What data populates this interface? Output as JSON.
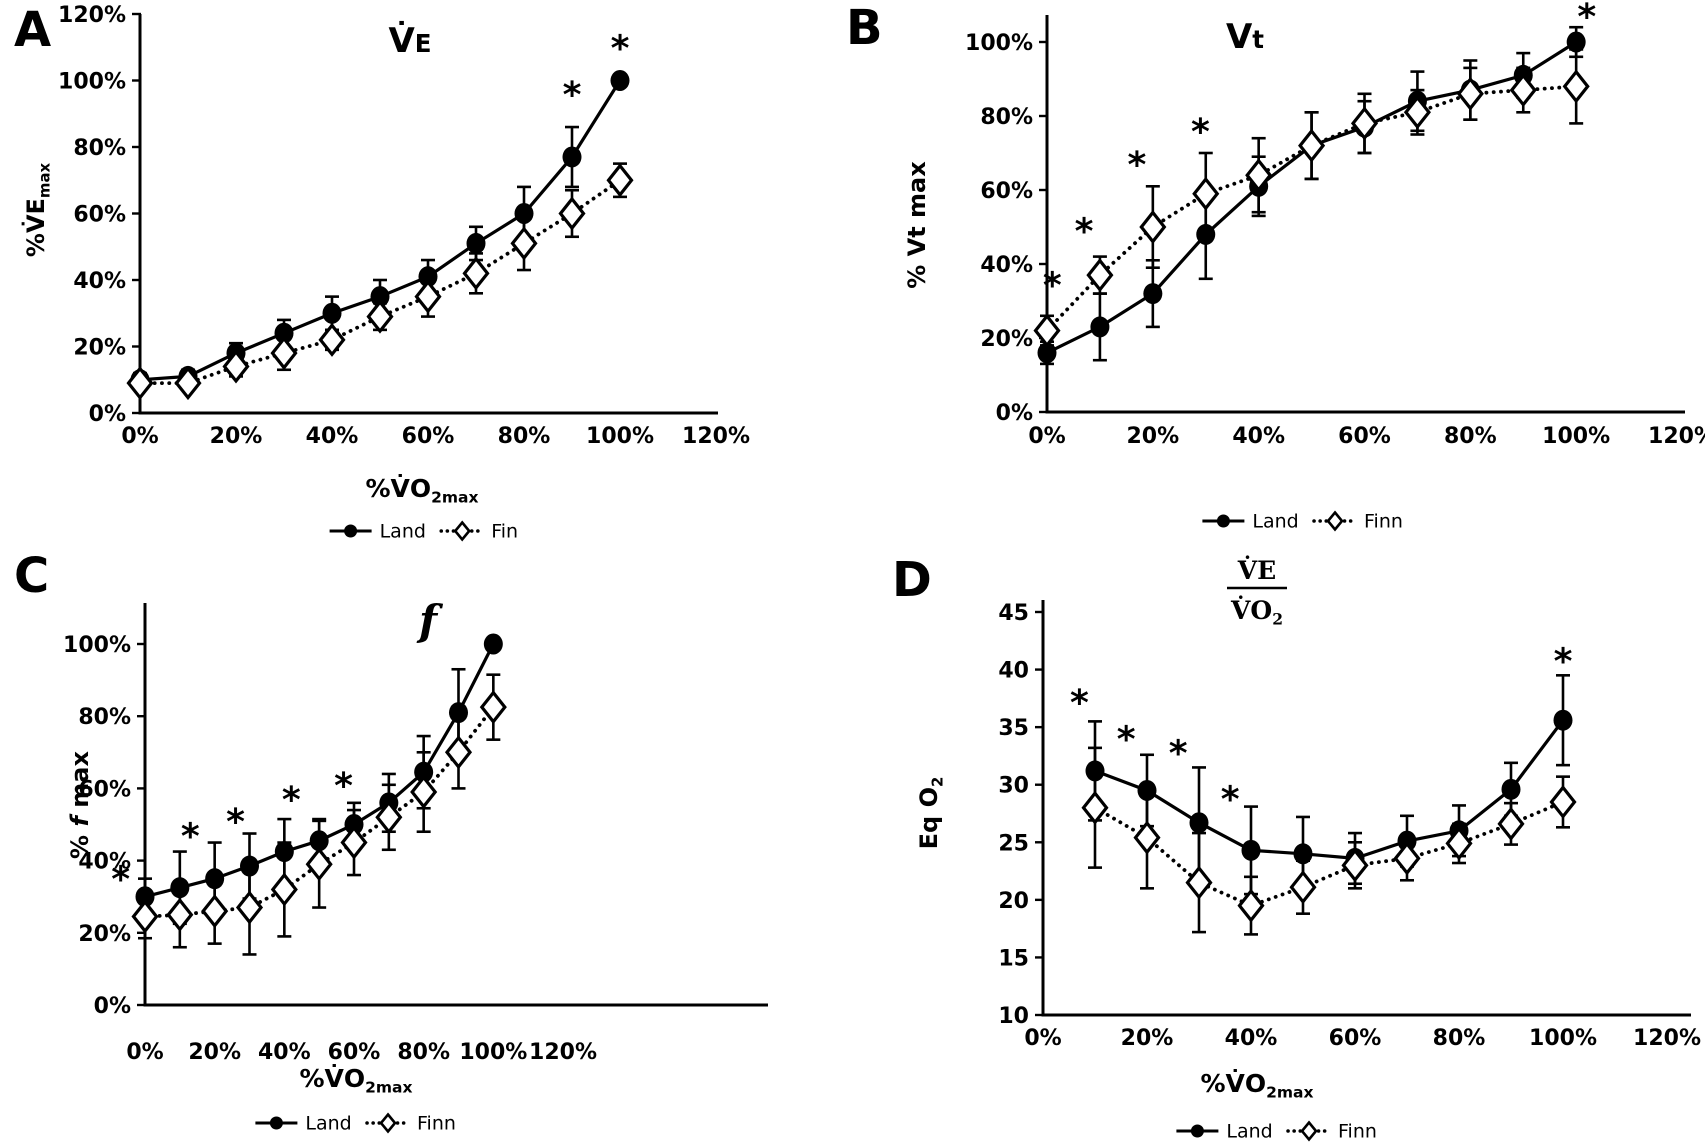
{
  "colors": {
    "ink": "#000000",
    "background": "#ffffff"
  },
  "significance_marker": "*",
  "chart_data": [
    {
      "panel": "A",
      "type": "line",
      "title": "V̇~{E}",
      "xlabel": "%V̇O_{2max}",
      "ylabel": "%V̇E_{max}",
      "xlim": [
        0,
        120
      ],
      "ylim": [
        0,
        120
      ],
      "x_ticks": {
        "values": [
          0,
          20,
          40,
          60,
          80,
          100,
          120
        ],
        "labels": [
          "0%",
          "20%",
          "40%",
          "60%",
          "80%",
          "100%",
          "120%"
        ]
      },
      "y_ticks": {
        "values": [
          0,
          20,
          40,
          60,
          80,
          100,
          120
        ],
        "labels": [
          "0%",
          "20%",
          "40%",
          "60%",
          "80%",
          "100%",
          "120%"
        ]
      },
      "x": [
        0,
        10,
        20,
        30,
        40,
        50,
        60,
        70,
        80,
        90,
        100
      ],
      "series": [
        {
          "name": "Land",
          "style": "solid-circle",
          "values": [
            10,
            11,
            18,
            24,
            30,
            35,
            41,
            51,
            60,
            77,
            100
          ],
          "err": [
            2,
            2,
            3,
            4,
            5,
            5,
            5,
            5,
            8,
            9,
            0
          ]
        },
        {
          "name": "Fin",
          "style": "dotted-diamond",
          "values": [
            9,
            9,
            14,
            18,
            22,
            29,
            35,
            42,
            51,
            60,
            70
          ],
          "err": [
            2,
            2,
            3,
            5,
            3,
            4,
            6,
            6,
            8,
            7,
            5
          ]
        }
      ],
      "asterisks": [
        {
          "x": 90,
          "y": 96
        },
        {
          "x": 100,
          "y": 110
        }
      ],
      "legend": [
        "Land",
        "Fin"
      ]
    },
    {
      "panel": "B",
      "type": "line",
      "title": "V~{t}",
      "xlabel": null,
      "ylabel": "% Vt max",
      "xlim": [
        0,
        120
      ],
      "ylim": [
        0,
        100
      ],
      "x_ticks": {
        "values": [
          0,
          20,
          40,
          60,
          80,
          100,
          120
        ],
        "labels": [
          "0%",
          "20%",
          "40%",
          "60%",
          "80%",
          "100%",
          "120%"
        ]
      },
      "y_ticks": {
        "values": [
          0,
          20,
          40,
          60,
          80,
          100
        ],
        "labels": [
          "0%",
          "20%",
          "40%",
          "60%",
          "80%",
          "100%"
        ]
      },
      "x": [
        0,
        10,
        20,
        30,
        40,
        50,
        60,
        70,
        80,
        90,
        100
      ],
      "series": [
        {
          "name": "Land",
          "style": "solid-circle",
          "values": [
            16,
            23,
            32,
            48,
            61,
            72,
            77,
            84,
            87,
            91,
            100
          ],
          "err": [
            3,
            9,
            9,
            12,
            8,
            9,
            7,
            8,
            8,
            6,
            4
          ]
        },
        {
          "name": "Finn",
          "style": "dotted-diamond",
          "values": [
            22,
            37,
            50,
            59,
            64,
            72,
            78,
            81,
            86,
            87,
            88
          ],
          "err": [
            4,
            5,
            11,
            11,
            10,
            9,
            8,
            6,
            7,
            6,
            10
          ]
        }
      ],
      "asterisks": [
        {
          "x": 1,
          "y": 34.5
        },
        {
          "x": 7,
          "y": 49
        },
        {
          "x": 17,
          "y": 67
        },
        {
          "x": 29,
          "y": 76
        },
        {
          "x": 102,
          "y": 107
        }
      ],
      "legend": [
        "Land",
        "Finn"
      ]
    },
    {
      "panel": "C",
      "type": "line",
      "title": "*f*",
      "xlabel": "%V̇O_{2max}",
      "ylabel": "% *f* max",
      "xlim": [
        0,
        120
      ],
      "ylim": [
        0,
        100
      ],
      "x_ticks": {
        "values": [
          0,
          20,
          40,
          60,
          80,
          100,
          120
        ],
        "labels": [
          "0%",
          "20%",
          "40%",
          "60%",
          "80%",
          "100%",
          "120%"
        ]
      },
      "y_ticks": {
        "values": [
          0,
          20,
          40,
          60,
          80,
          100
        ],
        "labels": [
          "0%",
          "20%",
          "40%",
          "60%",
          "80%",
          "100%"
        ]
      },
      "x": [
        0,
        10,
        20,
        30,
        40,
        50,
        60,
        70,
        80,
        90,
        100
      ],
      "series": [
        {
          "name": "Land",
          "style": "solid-circle",
          "values": [
            30,
            32.5,
            35,
            38.5,
            42.5,
            45.5,
            50,
            56,
            64.5,
            81,
            100
          ],
          "err": [
            5,
            10,
            10,
            9,
            9,
            6,
            6,
            8,
            10,
            12,
            0
          ]
        },
        {
          "name": "Finn",
          "style": "dotted-diamond",
          "values": [
            24.5,
            25,
            26,
            27,
            32,
            39,
            45,
            52,
            59,
            70,
            82.5
          ],
          "err": [
            6,
            9,
            9,
            13,
            13,
            12,
            9,
            9,
            11,
            10,
            9
          ]
        }
      ],
      "asterisks": [
        {
          "x": -7,
          "y": 35
        },
        {
          "x": 13,
          "y": 47
        },
        {
          "x": 26,
          "y": 51
        },
        {
          "x": 42,
          "y": 57
        },
        {
          "x": 57,
          "y": 61
        }
      ],
      "legend": [
        "Land",
        "Finn"
      ]
    },
    {
      "panel": "D",
      "type": "line",
      "title_fraction": {
        "num": "V̇E",
        "den": "V̇O_{2}"
      },
      "xlabel": "%V̇O_{2max}",
      "ylabel": "Eq O_{2}",
      "xlim": [
        0,
        120
      ],
      "ylim": [
        10,
        45
      ],
      "x_ticks": {
        "values": [
          0,
          20,
          40,
          60,
          80,
          100,
          120
        ],
        "labels": [
          "0%",
          "20%",
          "40%",
          "60%",
          "80%",
          "100%",
          "120%"
        ]
      },
      "y_ticks": {
        "values": [
          45,
          40,
          35,
          30,
          25,
          20,
          15,
          10
        ],
        "labels": [
          "45",
          "40",
          "35",
          "30",
          "25",
          "20",
          "15",
          "10"
        ]
      },
      "x": [
        10,
        20,
        30,
        40,
        50,
        60,
        70,
        80,
        90,
        100
      ],
      "series": [
        {
          "name": "Land",
          "style": "solid-circle",
          "values": [
            31.2,
            29.5,
            26.7,
            24.3,
            24.0,
            23.6,
            25.1,
            26.0,
            29.6,
            35.6
          ],
          "err": [
            4.3,
            3.1,
            4.8,
            3.8,
            3.2,
            2.2,
            2.2,
            2.2,
            2.3,
            3.9
          ]
        },
        {
          "name": "Finn",
          "style": "dotted-diamond",
          "values": [
            28.0,
            25.4,
            21.5,
            19.5,
            21.1,
            23.0,
            23.6,
            24.9,
            26.6,
            28.5
          ],
          "err": [
            5.2,
            4.4,
            4.3,
            2.5,
            2.3,
            2.0,
            1.9,
            1.7,
            1.8,
            2.2
          ]
        }
      ],
      "asterisks": [
        {
          "x": 7,
          "y": 37.2
        },
        {
          "x": 16,
          "y": 34
        },
        {
          "x": 26,
          "y": 32.8
        },
        {
          "x": 36,
          "y": 28.8
        },
        {
          "x": 100,
          "y": 40.8
        }
      ],
      "legend": [
        "Land",
        "Finn"
      ]
    }
  ]
}
